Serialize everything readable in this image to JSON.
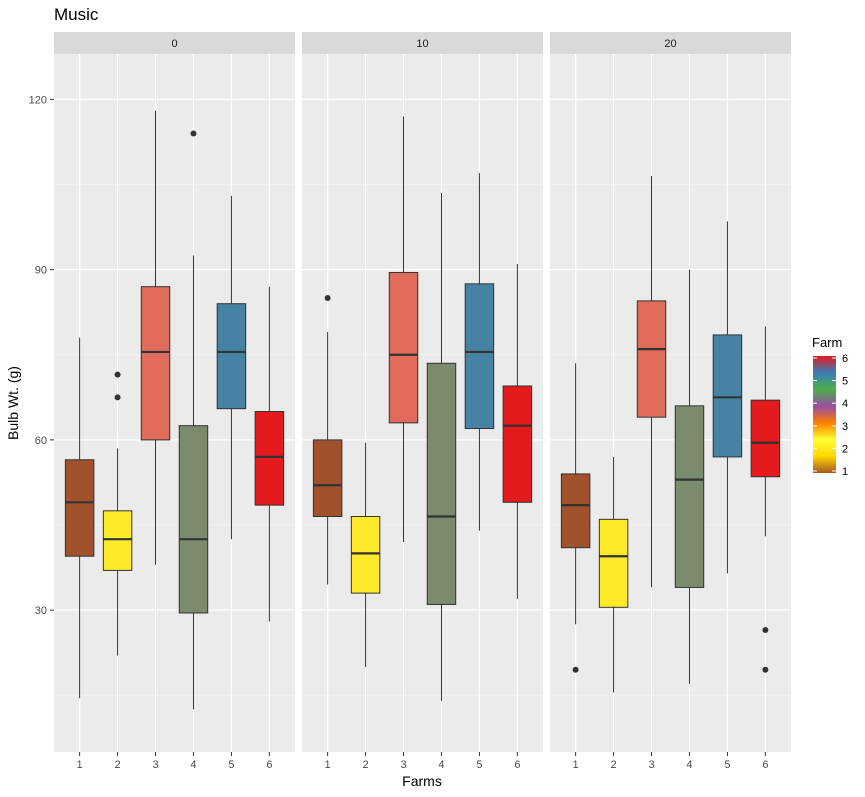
{
  "chart_data": {
    "type": "boxplot",
    "title": "Music",
    "xlabel": "Farms",
    "ylabel": "Bulb Wt. (g)",
    "ylim": [
      5,
      128
    ],
    "yticks": [
      30,
      60,
      90,
      120
    ],
    "grid": true,
    "legend_position": "right",
    "facet_labels": [
      "0",
      "10",
      "20"
    ],
    "categories": [
      "1",
      "2",
      "3",
      "4",
      "5",
      "6"
    ],
    "farm_colors": [
      "#A0522D",
      "#FFE92B",
      "#E06B5B",
      "#7A8B6E",
      "#4682A4",
      "#E41A1C"
    ],
    "legend": {
      "title": "Farm",
      "ticks": [
        "6",
        "5",
        "4",
        "3",
        "2",
        "1"
      ],
      "tick_values": [
        6,
        5,
        4,
        3,
        2,
        1
      ],
      "gradient": [
        "#A65628",
        "#FFD700",
        "#FFFF33",
        "#FF7F00",
        "#984EA3",
        "#4DAF4A",
        "#377EB8",
        "#E41A1C"
      ]
    },
    "facets": [
      {
        "label": "0",
        "boxes": [
          {
            "farm": "1",
            "lower_whisker": 14.5,
            "q1": 39.5,
            "median": 49,
            "q3": 56.5,
            "upper_whisker": 78,
            "outliers": []
          },
          {
            "farm": "2",
            "lower_whisker": 22,
            "q1": 37,
            "median": 42.5,
            "q3": 47.5,
            "upper_whisker": 58.5,
            "outliers": [
              67.5,
              71.5
            ]
          },
          {
            "farm": "3",
            "lower_whisker": 38,
            "q1": 60,
            "median": 75.5,
            "q3": 87,
            "upper_whisker": 118,
            "outliers": []
          },
          {
            "farm": "4",
            "lower_whisker": 12.5,
            "q1": 29.5,
            "median": 42.5,
            "q3": 62.5,
            "upper_whisker": 92.5,
            "outliers": [
              114
            ]
          },
          {
            "farm": "5",
            "lower_whisker": 42.5,
            "q1": 65.5,
            "median": 75.5,
            "q3": 84,
            "upper_whisker": 103,
            "outliers": []
          },
          {
            "farm": "6",
            "lower_whisker": 28,
            "q1": 48.5,
            "median": 57,
            "q3": 65,
            "upper_whisker": 87,
            "outliers": []
          }
        ]
      },
      {
        "label": "10",
        "boxes": [
          {
            "farm": "1",
            "lower_whisker": 34.5,
            "q1": 46.5,
            "median": 52,
            "q3": 60,
            "upper_whisker": 79,
            "outliers": [
              85
            ]
          },
          {
            "farm": "2",
            "lower_whisker": 20,
            "q1": 33,
            "median": 40,
            "q3": 46.5,
            "upper_whisker": 59.5,
            "outliers": []
          },
          {
            "farm": "3",
            "lower_whisker": 42,
            "q1": 63,
            "median": 75,
            "q3": 89.5,
            "upper_whisker": 117,
            "outliers": []
          },
          {
            "farm": "4",
            "lower_whisker": 14,
            "q1": 31,
            "median": 46.5,
            "q3": 73.5,
            "upper_whisker": 103.5,
            "outliers": []
          },
          {
            "farm": "5",
            "lower_whisker": 44,
            "q1": 62,
            "median": 75.5,
            "q3": 87.5,
            "upper_whisker": 107,
            "outliers": []
          },
          {
            "farm": "6",
            "lower_whisker": 32,
            "q1": 49,
            "median": 62.5,
            "q3": 69.5,
            "upper_whisker": 91,
            "outliers": []
          }
        ]
      },
      {
        "label": "20",
        "boxes": [
          {
            "farm": "1",
            "lower_whisker": 27.5,
            "q1": 41,
            "median": 48.5,
            "q3": 54,
            "upper_whisker": 73.5,
            "outliers": [
              19.5
            ]
          },
          {
            "farm": "2",
            "lower_whisker": 15.5,
            "q1": 30.5,
            "median": 39.5,
            "q3": 46,
            "upper_whisker": 57,
            "outliers": []
          },
          {
            "farm": "3",
            "lower_whisker": 34,
            "q1": 64,
            "median": 76,
            "q3": 84.5,
            "upper_whisker": 106.5,
            "outliers": []
          },
          {
            "farm": "4",
            "lower_whisker": 17,
            "q1": 34,
            "median": 53,
            "q3": 66,
            "upper_whisker": 90,
            "outliers": []
          },
          {
            "farm": "5",
            "lower_whisker": 36.5,
            "q1": 57,
            "median": 67.5,
            "q3": 78.5,
            "upper_whisker": 98.5,
            "outliers": []
          },
          {
            "farm": "6",
            "lower_whisker": 43,
            "q1": 53.5,
            "median": 59.5,
            "q3": 67,
            "upper_whisker": 80,
            "outliers": [
              26.5,
              19.5
            ]
          }
        ]
      }
    ]
  }
}
